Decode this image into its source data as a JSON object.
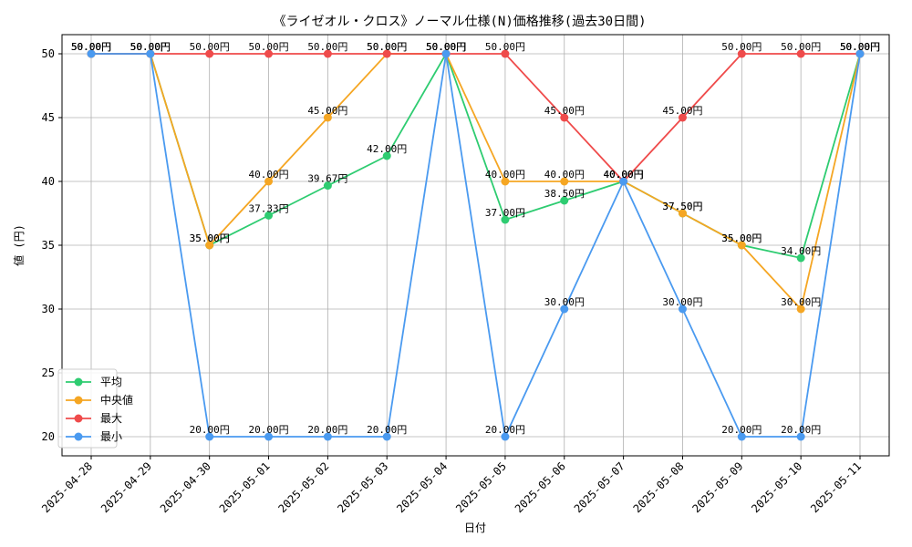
{
  "chart_data": {
    "type": "line",
    "title": "《ライゼオル・クロス》ノーマル仕様(N)価格推移(過去30日間)",
    "xlabel": "日付",
    "ylabel": "値 (円)",
    "ylim": [
      18.5,
      51.5
    ],
    "yticks": [
      20,
      25,
      30,
      35,
      40,
      45,
      50
    ],
    "grid": true,
    "legend_position": "bottom-left",
    "label_suffix": "円",
    "categories": [
      "2025-04-28",
      "2025-04-29",
      "2025-04-30",
      "2025-05-01",
      "2025-05-02",
      "2025-05-03",
      "2025-05-04",
      "2025-05-05",
      "2025-05-06",
      "2025-05-07",
      "2025-05-08",
      "2025-05-09",
      "2025-05-10",
      "2025-05-11"
    ],
    "series": [
      {
        "name": "平均",
        "color": "#2ecc71",
        "values": [
          50,
          50,
          35,
          37.33,
          39.67,
          42,
          50,
          37,
          38.5,
          40,
          37.5,
          35,
          34,
          50
        ]
      },
      {
        "name": "中央値",
        "color": "#f5a623",
        "values": [
          50,
          50,
          35,
          40,
          45,
          50,
          50,
          40,
          40,
          40,
          37.5,
          35,
          30,
          50
        ]
      },
      {
        "name": "最大",
        "color": "#ef4b4b",
        "values": [
          50,
          50,
          50,
          50,
          50,
          50,
          50,
          50,
          45,
          40,
          45,
          50,
          50,
          50
        ]
      },
      {
        "name": "最小",
        "color": "#4a9af0",
        "values": [
          50,
          50,
          20,
          20,
          20,
          20,
          50,
          20,
          30,
          40,
          30,
          20,
          20,
          50
        ]
      }
    ]
  }
}
